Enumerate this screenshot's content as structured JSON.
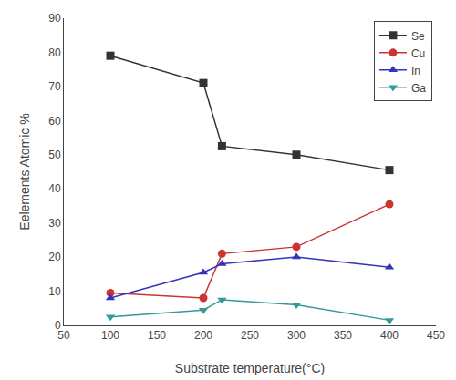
{
  "chart_data": {
    "type": "line",
    "x_label": "Substrate temperature(°C)",
    "y_label": "Eelements Atomic %",
    "x": [
      100,
      200,
      220,
      300,
      400
    ],
    "series": [
      {
        "name": "Se",
        "color": "#333333",
        "marker": "square",
        "values": [
          79,
          71,
          52.5,
          50,
          45.5
        ]
      },
      {
        "name": "Cu",
        "color": "#cc3333",
        "marker": "circle",
        "values": [
          9.5,
          8,
          21,
          23,
          35.5
        ]
      },
      {
        "name": "In",
        "color": "#3333bb",
        "marker": "triangle-up",
        "values": [
          8,
          15.5,
          18,
          20,
          17
        ]
      },
      {
        "name": "Ga",
        "color": "#339999",
        "marker": "triangle-down",
        "values": [
          2.5,
          4.5,
          7.5,
          6,
          1.5
        ]
      }
    ],
    "xlim": [
      50,
      450
    ],
    "ylim": [
      0,
      90
    ],
    "xticks": [
      50,
      100,
      150,
      200,
      250,
      300,
      350,
      400,
      450
    ],
    "yticks": [
      0,
      10,
      20,
      30,
      40,
      50,
      60,
      70,
      80,
      90
    ],
    "grid": false,
    "legend": "upper right"
  }
}
